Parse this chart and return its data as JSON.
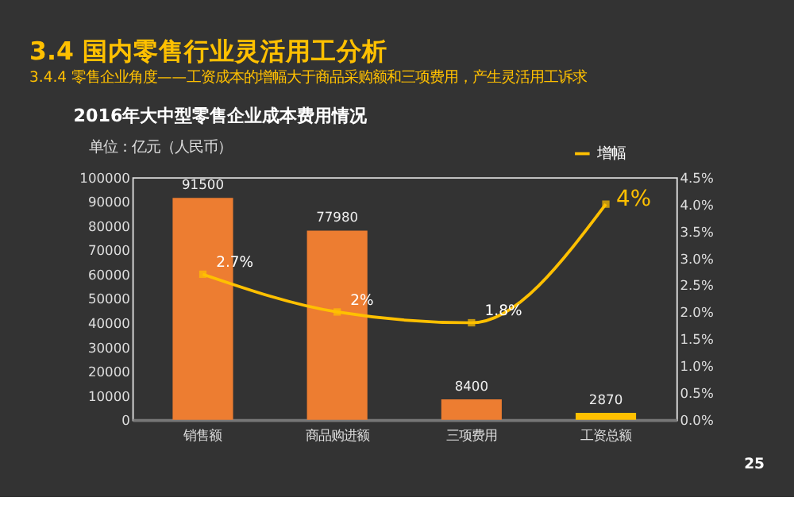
{
  "chart_data": {
    "type": "bar",
    "title": "3.4 国内零售行业灵活用工分析",
    "subtitle": "3.4.4 零售企业角度——工资成本的增幅大于商品采购额和三项费用，产生灵活用工诉求",
    "ylabel": "单位：亿元（人民币）",
    "annotations": [
      "2016年大中型零售企业成本费用情况",
      "25"
    ],
    "categories": [
      "销售额",
      "商品购进额",
      "三项费用",
      "工资总额"
    ],
    "series": [
      {
        "colors": [
          "#ed7d31",
          "#ed7d31",
          "#ed7d31",
          "#ffc000"
        ],
        "values": [
          91500,
          77980,
          8400,
          2870
        ],
        "value_labels": [
          "91500",
          "77980",
          "8400",
          "2870"
        ]
      },
      {
        "type": "line",
        "name": "增幅",
        "axis": "y2",
        "color": "#ffc000",
        "marker": "square",
        "values": [
          2.7,
          2,
          1.8,
          4
        ],
        "value_labels": [
          "2.7%",
          "2%",
          "1.8%",
          "4%"
        ]
      }
    ],
    "ylim": [
      0,
      100000
    ],
    "yticks": [
      0,
      10000,
      20000,
      30000,
      40000,
      50000,
      60000,
      70000,
      80000,
      90000,
      100000
    ],
    "y2lim": [
      0,
      4.5
    ],
    "y2ticks": [
      {
        "value": 0,
        "label": "0.0%"
      },
      {
        "value": 0.5,
        "label": "0.5%"
      },
      {
        "value": 1,
        "label": "1.0%"
      },
      {
        "value": 1.5,
        "label": "1.5%"
      },
      {
        "value": 2,
        "label": "2.0%"
      },
      {
        "value": 2.5,
        "label": "2.5%"
      },
      {
        "value": 3,
        "label": "3.0%"
      },
      {
        "value": 3.5,
        "label": "3.5%"
      },
      {
        "value": 4,
        "label": "4.0%"
      },
      {
        "value": 4.5,
        "label": "4.5%"
      }
    ],
    "grid": false,
    "legend": "top right"
  }
}
